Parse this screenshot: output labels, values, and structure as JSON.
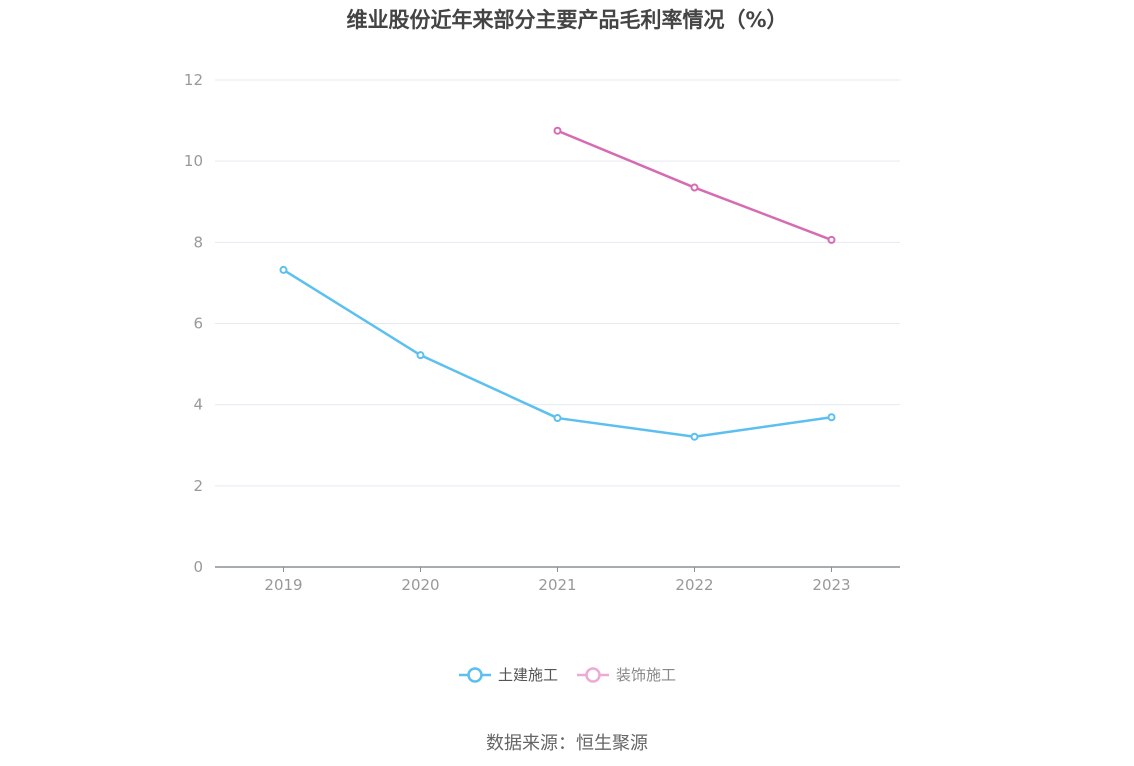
{
  "chart_data": {
    "type": "line",
    "title": "维业股份近年来部分主要产品毛利率情况（%）",
    "categories": [
      "2019",
      "2020",
      "2021",
      "2022",
      "2023"
    ],
    "ylim": [
      0,
      12
    ],
    "yticks": [
      0,
      2,
      4,
      6,
      8,
      10,
      12
    ],
    "grid": true,
    "legend_position": "bottom",
    "series": [
      {
        "name": "土建施工",
        "color": "#5bc0f0",
        "values": [
          7.32,
          5.22,
          3.67,
          3.21,
          3.69
        ]
      },
      {
        "name": "装饰施工",
        "color": "#d66bb3",
        "legend_color": "#eeaad6",
        "values": [
          null,
          null,
          10.75,
          9.35,
          8.06
        ]
      }
    ]
  },
  "source_text": "数据来源：恒生聚源"
}
